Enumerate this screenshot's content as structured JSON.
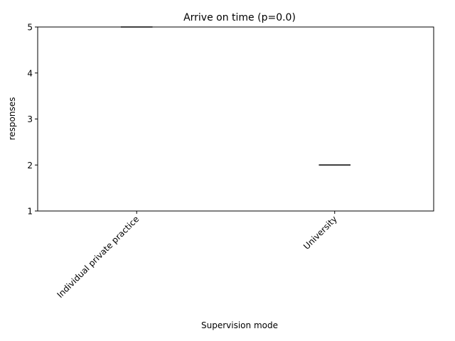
{
  "chart_data": {
    "type": "box",
    "title": "Arrive on time (p=0.0)",
    "xlabel": "Supervision mode",
    "ylabel": "responses",
    "categories": [
      "Individual private practice",
      "University"
    ],
    "values": [
      5,
      2
    ],
    "ylim": [
      1,
      5
    ],
    "yticks": [
      1,
      2,
      3,
      4,
      5
    ],
    "xtick_rotation": 45,
    "grid": false,
    "legend": "none",
    "line_color": "#000000"
  }
}
